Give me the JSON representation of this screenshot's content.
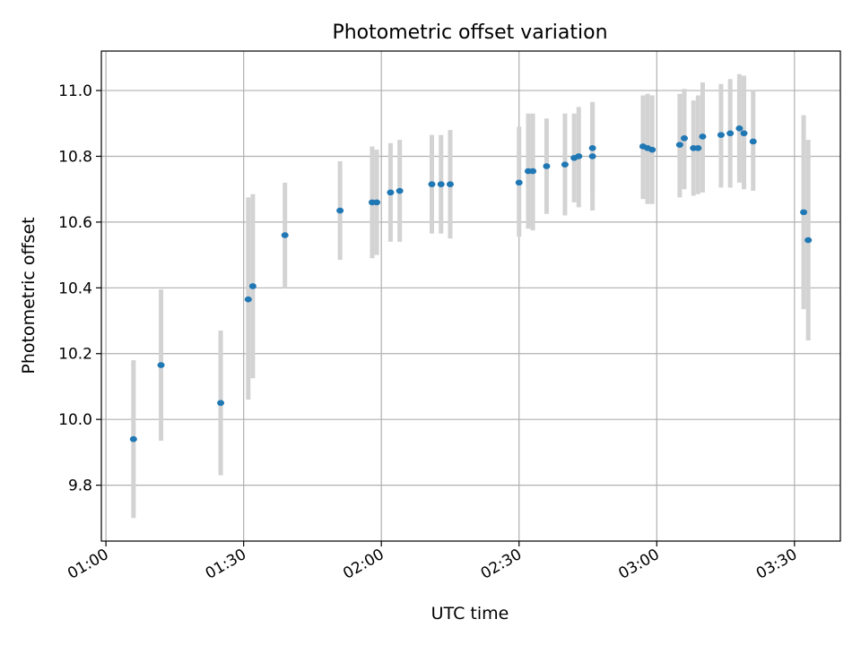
{
  "chart_data": {
    "type": "scatter",
    "title": "Photometric offset variation",
    "xlabel": "UTC time",
    "ylabel": "Photometric offset",
    "xlim": [
      "00:59",
      "03:40"
    ],
    "ylim": [
      9.63,
      11.12
    ],
    "x_ticks": [
      "01:00",
      "01:30",
      "02:00",
      "02:30",
      "03:00",
      "03:30"
    ],
    "y_ticks": [
      "9.8",
      "10.0",
      "10.2",
      "10.4",
      "10.6",
      "10.8",
      "11.0"
    ],
    "grid": true,
    "marker_color": "#1f77b4",
    "errorbar_color": "#d3d3d3",
    "points": [
      {
        "t": "01:06",
        "y": 9.94,
        "lo": 9.7,
        "hi": 10.18
      },
      {
        "t": "01:12",
        "y": 10.165,
        "lo": 9.935,
        "hi": 10.395
      },
      {
        "t": "01:25",
        "y": 10.05,
        "lo": 9.83,
        "hi": 10.27
      },
      {
        "t": "01:31",
        "y": 10.365,
        "lo": 10.06,
        "hi": 10.675
      },
      {
        "t": "01:32",
        "y": 10.405,
        "lo": 10.125,
        "hi": 10.685
      },
      {
        "t": "01:39",
        "y": 10.56,
        "lo": 10.4,
        "hi": 10.72
      },
      {
        "t": "01:51",
        "y": 10.635,
        "lo": 10.485,
        "hi": 10.785
      },
      {
        "t": "01:58",
        "y": 10.66,
        "lo": 10.49,
        "hi": 10.83
      },
      {
        "t": "01:59",
        "y": 10.66,
        "lo": 10.5,
        "hi": 10.82
      },
      {
        "t": "02:02",
        "y": 10.69,
        "lo": 10.54,
        "hi": 10.84
      },
      {
        "t": "02:04",
        "y": 10.695,
        "lo": 10.54,
        "hi": 10.85
      },
      {
        "t": "02:11",
        "y": 10.715,
        "lo": 10.565,
        "hi": 10.865
      },
      {
        "t": "02:13",
        "y": 10.715,
        "lo": 10.565,
        "hi": 10.865
      },
      {
        "t": "02:15",
        "y": 10.715,
        "lo": 10.55,
        "hi": 10.88
      },
      {
        "t": "02:30",
        "y": 10.72,
        "lo": 10.555,
        "hi": 10.89
      },
      {
        "t": "02:32",
        "y": 10.755,
        "lo": 10.58,
        "hi": 10.93
      },
      {
        "t": "02:33",
        "y": 10.755,
        "lo": 10.575,
        "hi": 10.93
      },
      {
        "t": "02:36",
        "y": 10.77,
        "lo": 10.625,
        "hi": 10.915
      },
      {
        "t": "02:40",
        "y": 10.775,
        "lo": 10.62,
        "hi": 10.93
      },
      {
        "t": "02:42",
        "y": 10.795,
        "lo": 10.66,
        "hi": 10.93
      },
      {
        "t": "02:43",
        "y": 10.8,
        "lo": 10.645,
        "hi": 10.95
      },
      {
        "t": "02:46",
        "y": 10.825,
        "lo": 10.68,
        "hi": 10.965
      },
      {
        "t": "02:46",
        "y": 10.8,
        "lo": 10.635,
        "hi": 10.965
      },
      {
        "t": "02:57",
        "y": 10.83,
        "lo": 10.67,
        "hi": 10.985
      },
      {
        "t": "02:58",
        "y": 10.825,
        "lo": 10.655,
        "hi": 10.99
      },
      {
        "t": "02:59",
        "y": 10.82,
        "lo": 10.655,
        "hi": 10.985
      },
      {
        "t": "03:05",
        "y": 10.835,
        "lo": 10.675,
        "hi": 10.99
      },
      {
        "t": "03:06",
        "y": 10.855,
        "lo": 10.7,
        "hi": 11.005
      },
      {
        "t": "03:08",
        "y": 10.825,
        "lo": 10.68,
        "hi": 10.97
      },
      {
        "t": "03:09",
        "y": 10.825,
        "lo": 10.685,
        "hi": 10.985
      },
      {
        "t": "03:10",
        "y": 10.86,
        "lo": 10.69,
        "hi": 11.025
      },
      {
        "t": "03:14",
        "y": 10.865,
        "lo": 10.705,
        "hi": 11.02
      },
      {
        "t": "03:16",
        "y": 10.87,
        "lo": 10.705,
        "hi": 11.035
      },
      {
        "t": "03:18",
        "y": 10.885,
        "lo": 10.72,
        "hi": 11.05
      },
      {
        "t": "03:19",
        "y": 10.87,
        "lo": 10.7,
        "hi": 11.045
      },
      {
        "t": "03:21",
        "y": 10.845,
        "lo": 10.695,
        "hi": 11.0
      },
      {
        "t": "03:32",
        "y": 10.63,
        "lo": 10.335,
        "hi": 10.925
      },
      {
        "t": "03:33",
        "y": 10.545,
        "lo": 10.24,
        "hi": 10.85
      }
    ]
  }
}
